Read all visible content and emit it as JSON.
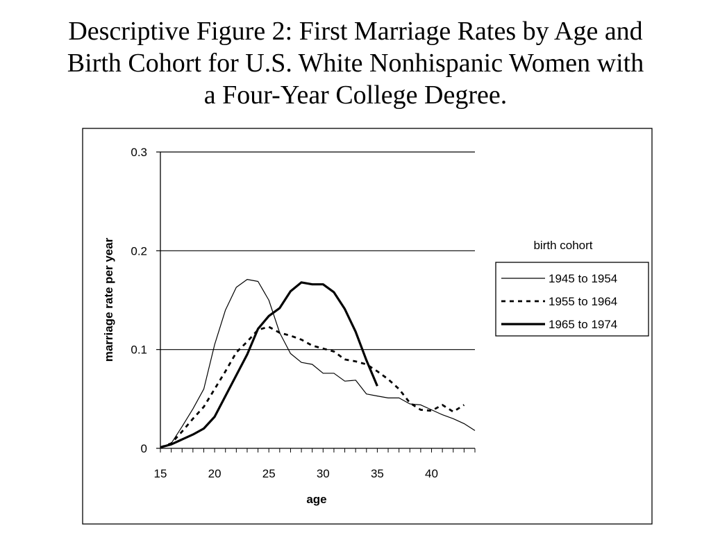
{
  "title_lines": [
    "Descriptive Figure 2:  First Marriage Rates by Age and",
    "Birth Cohort for U.S. White Nonhispanic Women with",
    "a Four-Year College Degree."
  ],
  "chart_data": {
    "type": "line",
    "title": "Descriptive Figure 2:  First Marriage Rates by Age and Birth Cohort for U.S. White Nonhispanic Women with a Four-Year College Degree.",
    "xlabel": "age",
    "ylabel": "marriage rate per year",
    "xlim": [
      15,
      44
    ],
    "ylim": [
      0,
      0.3
    ],
    "x_ticks": [
      "15",
      "20",
      "25",
      "30",
      "35",
      "40"
    ],
    "y_ticks": [
      "0",
      "0.1",
      "0.2",
      "0.3"
    ],
    "grid": "horizontal major gridlines",
    "legend_title": "birth cohort",
    "legend_position": "right",
    "series": [
      {
        "name": "1945 to 1954",
        "style": "thin-solid",
        "x": [
          15,
          16,
          17,
          18,
          19,
          20,
          21,
          22,
          23,
          24,
          25,
          26,
          27,
          28,
          29,
          30,
          31,
          32,
          33,
          34,
          35,
          36,
          37,
          38,
          39,
          40,
          41,
          42,
          43,
          44
        ],
        "y": [
          0.001,
          0.005,
          0.022,
          0.04,
          0.06,
          0.105,
          0.14,
          0.163,
          0.171,
          0.169,
          0.15,
          0.117,
          0.096,
          0.087,
          0.085,
          0.076,
          0.076,
          0.068,
          0.069,
          0.055,
          0.053,
          0.051,
          0.051,
          0.045,
          0.044,
          0.039,
          0.034,
          0.03,
          0.025,
          0.018
        ]
      },
      {
        "name": "1955 to 1964",
        "style": "dashed",
        "x": [
          15,
          16,
          17,
          18,
          19,
          20,
          21,
          22,
          23,
          24,
          25,
          26,
          27,
          28,
          29,
          30,
          31,
          32,
          33,
          34,
          35,
          36,
          37,
          38,
          39,
          40,
          41,
          42,
          43
        ],
        "y": [
          0.001,
          0.005,
          0.017,
          0.03,
          0.042,
          0.06,
          0.078,
          0.097,
          0.108,
          0.12,
          0.123,
          0.117,
          0.114,
          0.11,
          0.104,
          0.101,
          0.098,
          0.09,
          0.088,
          0.085,
          0.078,
          0.07,
          0.06,
          0.046,
          0.039,
          0.038,
          0.044,
          0.037,
          0.044
        ]
      },
      {
        "name": "1965 to 1974",
        "style": "thick-solid",
        "x": [
          15,
          16,
          17,
          18,
          19,
          20,
          21,
          22,
          23,
          24,
          25,
          26,
          27,
          28,
          29,
          30,
          31,
          32,
          33,
          34,
          35
        ],
        "y": [
          0.001,
          0.004,
          0.009,
          0.014,
          0.02,
          0.032,
          0.053,
          0.074,
          0.095,
          0.121,
          0.134,
          0.142,
          0.159,
          0.168,
          0.166,
          0.166,
          0.158,
          0.141,
          0.118,
          0.089,
          0.063
        ]
      }
    ]
  }
}
